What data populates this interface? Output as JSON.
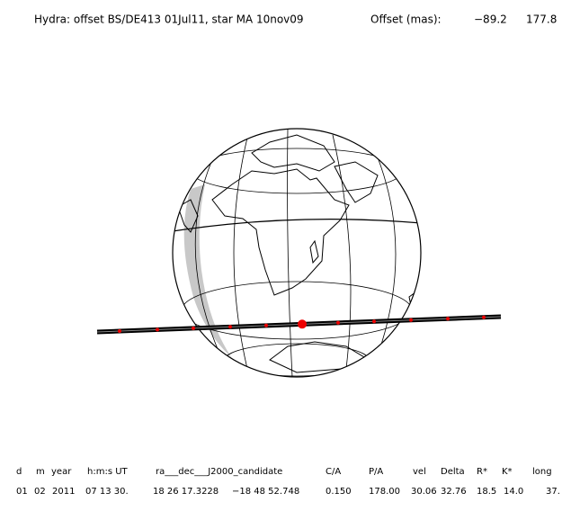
{
  "header": {
    "title": "Hydra: offset BS/DE413 01Jul11, star MA 10nov09",
    "offset_label": "Offset (mas):",
    "offset_values": [
      "−89.2",
      "177.8"
    ]
  },
  "table": {
    "columns": [
      "d",
      "m",
      "year",
      "h:m:s UT",
      "ra___dec___J2000_candidate",
      "C/A",
      "P/A",
      "vel",
      "Delta",
      "R*",
      "K*",
      "long"
    ],
    "rows": [
      [
        "01",
        "02",
        "2011",
        "07 13 30.",
        "18 26 17.3228",
        "−18 48 52.748",
        "0.150",
        "178.00",
        "30.06",
        "32.76",
        "18.5",
        "14.0",
        "37."
      ]
    ]
  }
}
